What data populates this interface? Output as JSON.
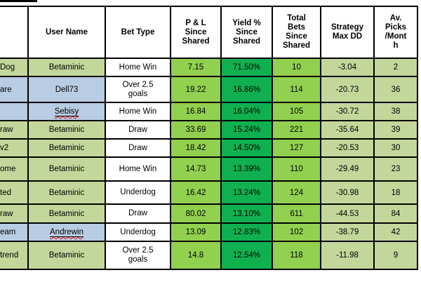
{
  "colors": {
    "cell_green": "#c4d79b",
    "cell_blue": "#b8cce4",
    "bright_green": "#92d050",
    "dark_green": "#10b050",
    "border_black": "#000000",
    "spellcheck_red": "#e01010"
  },
  "table": {
    "columns": [
      {
        "label": ""
      },
      {
        "label": "User Name"
      },
      {
        "label": "Bet Type"
      },
      {
        "label": "P & L\nSince\nShared"
      },
      {
        "label": "Yield %\nSince\nShared"
      },
      {
        "label": "Total\nBets\nSince\nShared"
      },
      {
        "label": "Strategy\nMax DD"
      },
      {
        "label": "Av.\nPicks\n/Mont\nh"
      }
    ],
    "rows": [
      {
        "name_fragment": "Dog",
        "row_color": "green",
        "user": "Betaminic",
        "user_color": "green",
        "misspelled": false,
        "bet_type": "Home Win",
        "pl": "7.15",
        "yield": "71.50%",
        "total_bets": "10",
        "max_dd": "-3.04",
        "picks": "2"
      },
      {
        "name_fragment": "are",
        "row_color": "blue",
        "user": "Dell73",
        "user_color": "blue",
        "misspelled": false,
        "bet_type": "Over 2.5\ngoals",
        "pl": "19.22",
        "yield": "16.86%",
        "total_bets": "114",
        "max_dd": "-20.73",
        "picks": "36"
      },
      {
        "name_fragment": "",
        "row_color": "blue",
        "user": "Sebisy",
        "user_color": "blue",
        "misspelled": true,
        "bet_type": "Home Win",
        "pl": "16.84",
        "yield": "16.04%",
        "total_bets": "105",
        "max_dd": "-30.72",
        "picks": "38"
      },
      {
        "name_fragment": "raw",
        "row_color": "green",
        "user": "Betaminic",
        "user_color": "green",
        "misspelled": false,
        "bet_type": "Draw",
        "pl": "33.69",
        "yield": "15.24%",
        "total_bets": "221",
        "max_dd": "-35.64",
        "picks": "39"
      },
      {
        "name_fragment": "v2",
        "row_color": "green",
        "user": "Betaminic",
        "user_color": "green",
        "misspelled": false,
        "bet_type": "Draw",
        "pl": "18.42",
        "yield": "14.50%",
        "total_bets": "127",
        "max_dd": "-20.53",
        "picks": "30"
      },
      {
        "name_fragment": "ome",
        "row_color": "green",
        "user": "Betaminic",
        "user_color": "green",
        "misspelled": false,
        "bet_type": "Home Win",
        "pl": "14.73",
        "yield": "13.39%",
        "total_bets": "110",
        "max_dd": "-29.49",
        "picks": "23"
      },
      {
        "name_fragment": "ted",
        "row_color": "green",
        "user": "Betaminic",
        "user_color": "green",
        "misspelled": false,
        "bet_type": "Underdog",
        "pl": "16.42",
        "yield": "13.24%",
        "total_bets": "124",
        "max_dd": "-30.98",
        "picks": "18"
      },
      {
        "name_fragment": "raw",
        "row_color": "green",
        "user": "Betaminic",
        "user_color": "green",
        "misspelled": false,
        "bet_type": "Draw",
        "pl": "80.02",
        "yield": "13.10%",
        "total_bets": "611",
        "max_dd": "-44.53",
        "picks": "84"
      },
      {
        "name_fragment": "eam",
        "row_color": "blue",
        "user": "Andrewin",
        "user_color": "blue",
        "misspelled": true,
        "bet_type": "Underdog",
        "pl": "13.09",
        "yield": "12.83%",
        "total_bets": "102",
        "max_dd": "-38.79",
        "picks": "42"
      },
      {
        "name_fragment": "trend",
        "row_color": "green",
        "user": "Betaminic",
        "user_color": "green",
        "misspelled": false,
        "bet_type": "Over 2.5\ngoals",
        "pl": "14.8",
        "yield": "12.54%",
        "total_bets": "118",
        "max_dd": "-11.98",
        "picks": "9"
      }
    ]
  }
}
